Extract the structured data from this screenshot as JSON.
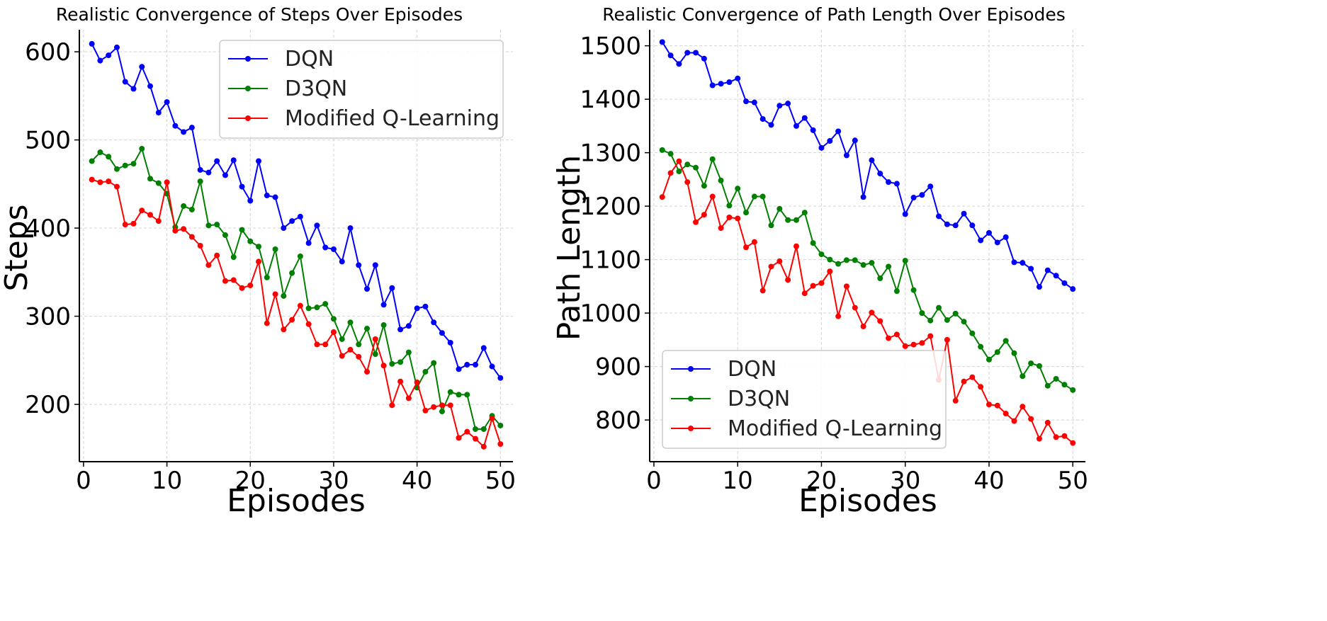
{
  "colors": {
    "DQN": "#0000ff",
    "D3QN": "#008000",
    "Modified Q-Learning": "#ff0000"
  },
  "chart_data": [
    {
      "type": "line",
      "title": "Realistic Convergence of Steps Over Episodes",
      "xlabel": "Episodes",
      "ylabel": "Steps",
      "xlim": [
        -0.5,
        51.5
      ],
      "ylim": [
        135,
        625
      ],
      "xticks": [
        0,
        10,
        20,
        30,
        40,
        50
      ],
      "yticks": [
        200,
        300,
        400,
        500,
        600
      ],
      "grid": true,
      "legend_position": "top-right",
      "x": [
        1,
        2,
        3,
        4,
        5,
        6,
        7,
        8,
        9,
        10,
        11,
        12,
        13,
        14,
        15,
        16,
        17,
        18,
        19,
        20,
        21,
        22,
        23,
        24,
        25,
        26,
        27,
        28,
        29,
        30,
        31,
        32,
        33,
        34,
        35,
        36,
        37,
        38,
        39,
        40,
        41,
        42,
        43,
        44,
        45,
        46,
        47,
        48,
        49,
        50
      ],
      "series": [
        {
          "name": "DQN",
          "values": [
            609,
            590,
            596,
            605,
            566,
            558,
            583,
            561,
            531,
            543,
            516,
            509,
            514,
            466,
            463,
            476,
            460,
            477,
            447,
            431,
            476,
            437,
            435,
            400,
            408,
            413,
            383,
            403,
            378,
            376,
            362,
            400,
            358,
            331,
            358,
            313,
            332,
            285,
            289,
            309,
            311,
            293,
            281,
            270,
            240,
            245,
            245,
            264,
            243,
            230
          ]
        },
        {
          "name": "D3QN",
          "values": [
            476,
            486,
            481,
            467,
            471,
            473,
            490,
            456,
            451,
            439,
            401,
            425,
            421,
            453,
            403,
            404,
            392,
            367,
            398,
            385,
            379,
            344,
            376,
            323,
            349,
            368,
            309,
            310,
            314,
            297,
            274,
            293,
            268,
            286,
            257,
            290,
            246,
            248,
            259,
            219,
            237,
            247,
            192,
            214,
            211,
            211,
            172,
            172,
            187,
            176
          ]
        },
        {
          "name": "Modified Q-Learning",
          "values": [
            455,
            452,
            453,
            447,
            404,
            405,
            420,
            415,
            408,
            452,
            397,
            399,
            390,
            380,
            358,
            369,
            340,
            341,
            332,
            335,
            362,
            292,
            325,
            285,
            296,
            312,
            291,
            268,
            268,
            282,
            255,
            262,
            254,
            237,
            274,
            244,
            199,
            226,
            207,
            225,
            193,
            197,
            199,
            199,
            162,
            169,
            161,
            152,
            184,
            155
          ]
        }
      ]
    },
    {
      "type": "line",
      "title": "Realistic Convergence of Path Length Over Episodes",
      "xlabel": "Episodes",
      "ylabel": "Path Length",
      "xlim": [
        -0.5,
        51.5
      ],
      "ylim": [
        722,
        1530
      ],
      "xticks": [
        0,
        10,
        20,
        30,
        40,
        50
      ],
      "yticks": [
        800,
        900,
        1000,
        1100,
        1200,
        1300,
        1400,
        1500
      ],
      "grid": true,
      "legend_position": "bottom-left",
      "x": [
        1,
        2,
        3,
        4,
        5,
        6,
        7,
        8,
        9,
        10,
        11,
        12,
        13,
        14,
        15,
        16,
        17,
        18,
        19,
        20,
        21,
        22,
        23,
        24,
        25,
        26,
        27,
        28,
        29,
        30,
        31,
        32,
        33,
        34,
        35,
        36,
        37,
        38,
        39,
        40,
        41,
        42,
        43,
        44,
        45,
        46,
        47,
        48,
        49,
        50
      ],
      "series": [
        {
          "name": "DQN",
          "values": [
            1507,
            1482,
            1466,
            1487,
            1487,
            1476,
            1426,
            1429,
            1432,
            1439,
            1396,
            1394,
            1363,
            1352,
            1388,
            1392,
            1350,
            1365,
            1342,
            1309,
            1322,
            1340,
            1295,
            1323,
            1217,
            1286,
            1261,
            1245,
            1242,
            1185,
            1216,
            1221,
            1237,
            1181,
            1166,
            1164,
            1186,
            1164,
            1136,
            1150,
            1132,
            1142,
            1095,
            1094,
            1083,
            1049,
            1080,
            1070,
            1056,
            1045
          ]
        },
        {
          "name": "D3QN",
          "values": [
            1305,
            1298,
            1265,
            1278,
            1272,
            1238,
            1288,
            1248,
            1201,
            1233,
            1188,
            1218,
            1218,
            1164,
            1195,
            1174,
            1174,
            1188,
            1131,
            1110,
            1100,
            1092,
            1099,
            1099,
            1090,
            1094,
            1065,
            1087,
            1041,
            1098,
            1043,
            1000,
            986,
            1010,
            987,
            999,
            984,
            962,
            937,
            913,
            927,
            948,
            925,
            882,
            906,
            901,
            864,
            877,
            866,
            856
          ]
        },
        {
          "name": "Modified Q-Learning",
          "values": [
            1217,
            1262,
            1284,
            1245,
            1170,
            1184,
            1218,
            1159,
            1179,
            1177,
            1123,
            1133,
            1042,
            1087,
            1097,
            1062,
            1125,
            1037,
            1051,
            1056,
            1078,
            994,
            1050,
            1010,
            975,
            1001,
            985,
            953,
            960,
            938,
            941,
            944,
            957,
            875,
            950,
            836,
            872,
            880,
            862,
            829,
            827,
            812,
            798,
            825,
            802,
            765,
            795,
            768,
            770,
            757
          ]
        }
      ]
    }
  ]
}
